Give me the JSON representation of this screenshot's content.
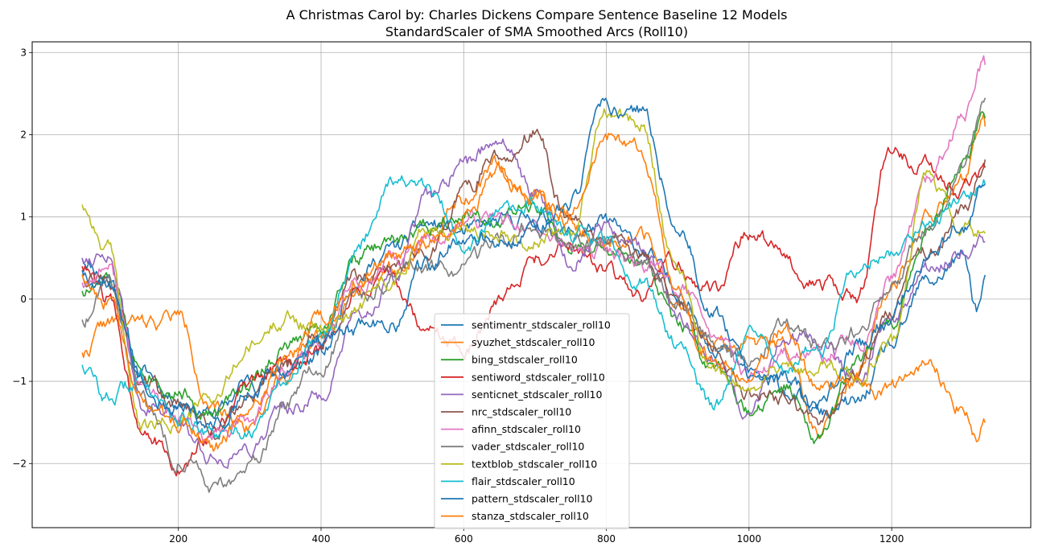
{
  "chart_data": {
    "type": "line",
    "title_line1": "A Christmas Carol by: Charles Dickens Compare Sentence Baseline 12 Models",
    "title_line2": "StandardScaler of SMA Smoothed Arcs (Roll10)",
    "xlabel": "",
    "ylabel": "",
    "xlim": [
      -5,
      1395
    ],
    "ylim": [
      -2.78,
      3.13
    ],
    "xticks": [
      200,
      400,
      600,
      800,
      1000,
      1200
    ],
    "yticks": [
      -2,
      -1,
      0,
      1,
      2,
      3
    ],
    "ytick_labels": [
      "−2",
      "−1",
      "0",
      "1",
      "2",
      "3"
    ],
    "grid": true,
    "legend_position": "lower-center",
    "series": [
      {
        "name": "sentimentr_stdscaler_roll10",
        "color": "#1f77b4",
        "seed": 11,
        "x": [
          65,
          100,
          150,
          200,
          250,
          300,
          350,
          400,
          450,
          500,
          550,
          600,
          650,
          700,
          750,
          800,
          850,
          900,
          950,
          1000,
          1050,
          1100,
          1150,
          1200,
          1250,
          1300,
          1320,
          1332
        ],
        "y": [
          0.5,
          0.3,
          -0.9,
          -1.2,
          -1.4,
          -1.0,
          -0.9,
          -0.7,
          0.3,
          0.6,
          0.9,
          0.8,
          0.9,
          1.0,
          0.8,
          0.9,
          0.6,
          0.1,
          -0.5,
          -0.9,
          -1.1,
          -1.4,
          -1.3,
          -0.6,
          0.2,
          0.5,
          -0.1,
          0.3
        ]
      },
      {
        "name": "syuzhet_stdscaler_roll10",
        "color": "#ff7f0e",
        "seed": 22,
        "x": [
          65,
          100,
          150,
          200,
          250,
          300,
          350,
          400,
          450,
          500,
          550,
          600,
          650,
          700,
          750,
          800,
          850,
          900,
          950,
          1000,
          1050,
          1100,
          1150,
          1200,
          1250,
          1300,
          1332
        ],
        "y": [
          -0.65,
          -0.3,
          -0.3,
          -0.2,
          -1.4,
          -1.5,
          -0.9,
          -0.4,
          0.2,
          0.4,
          0.8,
          1.2,
          1.6,
          1.2,
          0.9,
          0.7,
          0.8,
          -0.1,
          -0.6,
          -0.5,
          -0.6,
          -1.6,
          -1.0,
          0.2,
          1.0,
          1.4,
          2.1
        ]
      },
      {
        "name": "bing_stdscaler_roll10",
        "color": "#2ca02c",
        "seed": 33,
        "x": [
          65,
          100,
          150,
          200,
          250,
          300,
          350,
          400,
          450,
          500,
          550,
          600,
          650,
          700,
          750,
          800,
          850,
          900,
          950,
          1000,
          1050,
          1100,
          1150,
          1200,
          1250,
          1300,
          1332
        ],
        "y": [
          0.1,
          0.2,
          -0.8,
          -1.1,
          -1.4,
          -1.0,
          -0.6,
          -0.3,
          0.5,
          0.7,
          0.9,
          1.1,
          1.0,
          1.1,
          0.6,
          0.6,
          0.4,
          -0.3,
          -0.9,
          -1.4,
          -1.1,
          -1.6,
          -0.8,
          -0.3,
          0.9,
          1.6,
          2.2
        ]
      },
      {
        "name": "sentiword_stdscaler_roll10",
        "color": "#d62728",
        "seed": 44,
        "x": [
          65,
          100,
          150,
          200,
          250,
          300,
          350,
          400,
          450,
          500,
          550,
          600,
          650,
          700,
          750,
          800,
          850,
          900,
          950,
          1000,
          1050,
          1100,
          1150,
          1200,
          1250,
          1300,
          1332
        ],
        "y": [
          0.4,
          0.0,
          -1.5,
          -2.1,
          -1.6,
          -1.1,
          -0.8,
          -0.6,
          0.1,
          0.2,
          -0.4,
          -0.6,
          0.0,
          0.5,
          0.7,
          0.3,
          0.0,
          0.4,
          0.1,
          0.8,
          0.5,
          0.2,
          0.0,
          1.8,
          1.6,
          1.3,
          1.6
        ]
      },
      {
        "name": "senticnet_stdscaler_roll10",
        "color": "#9467bd",
        "seed": 55,
        "x": [
          65,
          100,
          150,
          200,
          250,
          300,
          350,
          400,
          450,
          500,
          550,
          600,
          650,
          700,
          750,
          800,
          850,
          900,
          950,
          1000,
          1050,
          1100,
          1150,
          1200,
          1250,
          1300,
          1332
        ],
        "y": [
          0.5,
          0.6,
          -1.3,
          -1.5,
          -1.9,
          -1.8,
          -1.3,
          -1.2,
          -0.3,
          0.2,
          1.2,
          1.6,
          2.0,
          1.3,
          0.5,
          0.9,
          0.6,
          -0.1,
          -0.7,
          -1.3,
          -0.5,
          -0.5,
          -1.0,
          -0.2,
          0.3,
          0.6,
          0.7
        ]
      },
      {
        "name": "nrc_stdscaler_roll10",
        "color": "#8c564b",
        "seed": 66,
        "x": [
          65,
          100,
          150,
          200,
          250,
          300,
          350,
          400,
          450,
          500,
          550,
          600,
          650,
          700,
          750,
          800,
          850,
          900,
          950,
          1000,
          1050,
          1100,
          1150,
          1200,
          1250,
          1300,
          1332
        ],
        "y": [
          0.3,
          0.3,
          -1.0,
          -1.3,
          -1.6,
          -1.2,
          -0.8,
          -0.4,
          0.3,
          0.4,
          0.6,
          1.3,
          1.8,
          2.0,
          0.9,
          0.8,
          0.5,
          -0.1,
          -0.6,
          -1.1,
          -1.2,
          -1.5,
          -0.9,
          -0.1,
          0.6,
          1.1,
          1.7
        ]
      },
      {
        "name": "afinn_stdscaler_roll10",
        "color": "#e377c2",
        "seed": 77,
        "x": [
          65,
          100,
          150,
          200,
          250,
          300,
          350,
          400,
          450,
          500,
          550,
          600,
          650,
          700,
          750,
          800,
          850,
          900,
          950,
          1000,
          1050,
          1100,
          1150,
          1200,
          1250,
          1300,
          1332
        ],
        "y": [
          0.2,
          0.4,
          -1.1,
          -1.5,
          -1.7,
          -1.5,
          -0.9,
          -0.5,
          0.2,
          0.4,
          0.7,
          0.9,
          1.0,
          0.8,
          0.6,
          0.6,
          0.4,
          0.2,
          -0.4,
          -1.0,
          -0.7,
          -0.7,
          -0.6,
          0.2,
          1.4,
          2.2,
          2.85
        ]
      },
      {
        "name": "vader_stdscaler_roll10",
        "color": "#7f7f7f",
        "seed": 88,
        "x": [
          65,
          100,
          150,
          200,
          250,
          300,
          350,
          400,
          450,
          500,
          550,
          600,
          650,
          700,
          750,
          800,
          850,
          900,
          950,
          1000,
          1050,
          1100,
          1150,
          1200,
          1250,
          1300,
          1332
        ],
        "y": [
          -0.25,
          0.3,
          -1.2,
          -1.9,
          -2.3,
          -2.1,
          -1.3,
          -0.8,
          0.0,
          0.2,
          0.3,
          0.4,
          0.6,
          0.9,
          0.7,
          0.7,
          0.4,
          0.0,
          -0.6,
          -0.8,
          -0.3,
          -0.6,
          -0.4,
          0.2,
          0.9,
          1.6,
          2.45
        ]
      },
      {
        "name": "textblob_stdscaler_roll10",
        "color": "#bcbd22",
        "seed": 99,
        "x": [
          65,
          100,
          150,
          200,
          250,
          300,
          350,
          400,
          450,
          500,
          550,
          600,
          650,
          700,
          750,
          800,
          850,
          900,
          950,
          1000,
          1050,
          1100,
          1150,
          1200,
          1250,
          1300,
          1332
        ],
        "y": [
          1.15,
          0.6,
          -1.6,
          -1.5,
          -1.2,
          -0.6,
          -0.2,
          -0.4,
          -0.1,
          0.3,
          0.9,
          0.8,
          0.9,
          0.7,
          0.8,
          2.3,
          2.1,
          0.3,
          -0.9,
          -1.1,
          -0.8,
          -0.8,
          -0.9,
          -0.5,
          1.5,
          0.8,
          0.8
        ]
      },
      {
        "name": "flair_stdscaler_roll10",
        "color": "#17becf",
        "seed": 110,
        "x": [
          65,
          100,
          150,
          200,
          250,
          300,
          350,
          400,
          450,
          500,
          550,
          600,
          650,
          700,
          750,
          800,
          850,
          900,
          950,
          1000,
          1050,
          1100,
          1150,
          1200,
          1250,
          1300,
          1332
        ],
        "y": [
          -0.8,
          -1.2,
          -1.0,
          -1.4,
          -1.7,
          -1.6,
          -1.0,
          -0.4,
          0.6,
          1.5,
          1.3,
          0.7,
          1.0,
          1.1,
          0.8,
          0.7,
          0.2,
          -0.5,
          -1.3,
          -0.5,
          -0.8,
          -0.6,
          0.4,
          0.6,
          0.9,
          1.2,
          1.4
        ]
      },
      {
        "name": "pattern_stdscaler_roll10",
        "color": "#1f77b4",
        "seed": 121,
        "x": [
          65,
          100,
          150,
          200,
          250,
          300,
          350,
          400,
          450,
          500,
          550,
          600,
          650,
          700,
          750,
          800,
          850,
          900,
          950,
          1000,
          1050,
          1100,
          1150,
          1200,
          1250,
          1300,
          1332
        ],
        "y": [
          0.35,
          0.2,
          -1.0,
          -1.3,
          -1.5,
          -1.1,
          -0.9,
          -0.5,
          -0.4,
          -0.3,
          0.4,
          0.8,
          0.7,
          0.9,
          1.2,
          2.3,
          2.3,
          1.0,
          -0.2,
          -0.9,
          -1.0,
          -1.3,
          -0.6,
          -0.2,
          0.5,
          0.9,
          1.4
        ]
      },
      {
        "name": "stanza_stdscaler_roll10",
        "color": "#ff7f0e",
        "seed": 132,
        "x": [
          65,
          100,
          150,
          200,
          250,
          300,
          350,
          400,
          450,
          500,
          550,
          600,
          650,
          700,
          750,
          800,
          850,
          900,
          950,
          1000,
          1050,
          1100,
          1150,
          1200,
          1250,
          1300,
          1320,
          1332
        ],
        "y": [
          0.3,
          0.0,
          -1.3,
          -1.5,
          -1.8,
          -1.3,
          -0.7,
          -0.3,
          0.2,
          0.5,
          0.7,
          1.0,
          1.5,
          1.2,
          1.0,
          2.0,
          1.8,
          0.0,
          -0.7,
          -0.9,
          -0.4,
          -1.1,
          -1.0,
          -1.1,
          -0.8,
          -1.3,
          -1.7,
          -1.5
        ]
      }
    ]
  }
}
